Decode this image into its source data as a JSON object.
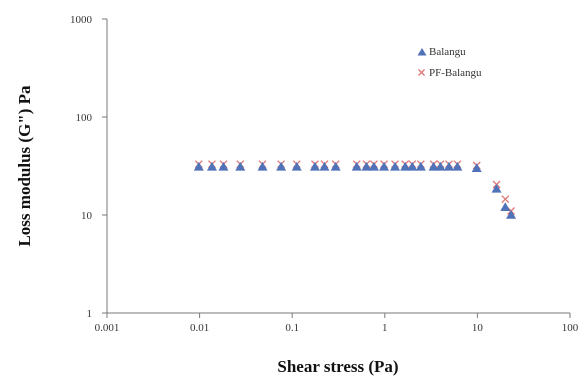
{
  "chart_data": {
    "type": "scatter",
    "title": "",
    "xlabel": "Shear stress (Pa)",
    "ylabel": "Loss modulus (G\") Pa",
    "x_scale": "log",
    "y_scale": "log",
    "xlim": [
      0.001,
      100
    ],
    "ylim": [
      1,
      1000
    ],
    "x_ticks": [
      0.001,
      0.01,
      0.1,
      1,
      10,
      100
    ],
    "x_tick_labels": [
      "0.001",
      "0.01",
      "0.1",
      "1",
      "10",
      "100"
    ],
    "y_ticks": [
      1,
      10,
      100,
      1000
    ],
    "y_tick_labels": [
      "1",
      "10",
      "100",
      "1000"
    ],
    "grid": false,
    "legend_position": "top-right",
    "series": [
      {
        "name": "Balangu",
        "marker": "triangle",
        "color": "#4f72b8",
        "x": [
          0.0098,
          0.0136,
          0.0181,
          0.0275,
          0.0478,
          0.0759,
          0.112,
          0.176,
          0.223,
          0.295,
          0.497,
          0.634,
          0.763,
          0.981,
          1.29,
          1.66,
          1.98,
          2.45,
          3.36,
          3.99,
          4.93,
          6.08,
          9.83,
          16.1,
          20.0,
          23.1
        ],
        "y": [
          31,
          31,
          31,
          31,
          31,
          31,
          31,
          31,
          31,
          31,
          31,
          31,
          31,
          31,
          31,
          31,
          31,
          31,
          31,
          31,
          31,
          31,
          30,
          18.5,
          12,
          10
        ]
      },
      {
        "name": "PF-Balangu",
        "marker": "x",
        "color": "#e07a7a",
        "x": [
          0.0098,
          0.0136,
          0.0181,
          0.0275,
          0.0478,
          0.0759,
          0.112,
          0.176,
          0.223,
          0.295,
          0.497,
          0.634,
          0.763,
          0.981,
          1.29,
          1.66,
          1.98,
          2.45,
          3.36,
          3.99,
          4.93,
          6.08,
          9.83,
          16.1,
          20.0,
          23.1
        ],
        "y": [
          33,
          33,
          33,
          33,
          33,
          33,
          33,
          33,
          33,
          33,
          33,
          33,
          33,
          33,
          33,
          33,
          33,
          33,
          33,
          33,
          33,
          33,
          32,
          20.5,
          14.5,
          11
        ]
      }
    ]
  }
}
